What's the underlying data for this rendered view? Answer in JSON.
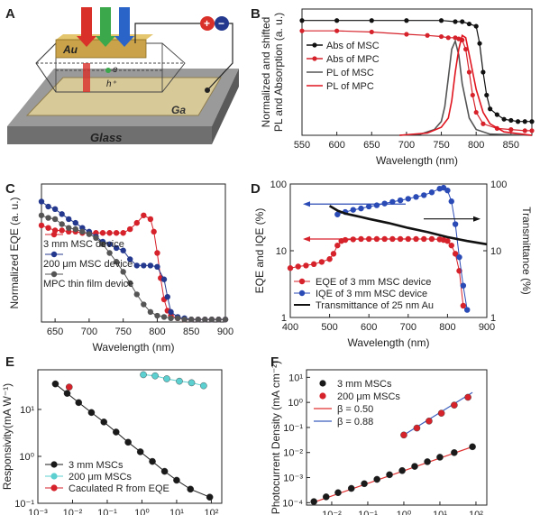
{
  "panel_labels": {
    "A": "A",
    "B": "B",
    "C": "C",
    "D": "D",
    "E": "E",
    "F": "F"
  },
  "schematic": {
    "layers": {
      "top": "Au",
      "bottom": "Ga",
      "substrate": "Glass"
    },
    "symbols": {
      "plus": "+",
      "minus": "−",
      "electron": "e",
      "hole": "h⁺"
    },
    "colors": {
      "red": "#d9302a",
      "green": "#3aa84b",
      "blue": "#2a64c8",
      "gold": "#c9a24a",
      "ga": "#c8b98a",
      "glass": "#8f8f8f"
    }
  },
  "chart_data": [
    {
      "id": "B",
      "type": "line",
      "xlabel": "Wavelength (nm)",
      "ylabel": "Normalized and shifted PL and Absorption (a. u.)",
      "xlim": [
        550,
        880
      ],
      "ylim": [
        0,
        1.1
      ],
      "xticks": [
        550,
        600,
        650,
        700,
        750,
        800,
        850
      ],
      "grid": false,
      "legend": "center-left",
      "series": [
        {
          "name": "Abs of MSC",
          "style": "dot-line",
          "color": "#111111",
          "x": [
            550,
            600,
            650,
            700,
            750,
            770,
            780,
            790,
            800,
            805,
            810,
            815,
            820,
            830,
            840,
            850,
            860,
            870,
            880
          ],
          "y": [
            1.0,
            1.0,
            1.0,
            1.0,
            1.0,
            0.99,
            0.99,
            0.97,
            0.95,
            0.8,
            0.55,
            0.35,
            0.23,
            0.18,
            0.14,
            0.13,
            0.12,
            0.12,
            0.12
          ]
        },
        {
          "name": "Abs of MPC",
          "style": "dot-line",
          "color": "#d6222b",
          "x": [
            550,
            600,
            650,
            700,
            730,
            750,
            760,
            770,
            775,
            780,
            785,
            790,
            795,
            800,
            810,
            830,
            850,
            870,
            880
          ],
          "y": [
            0.91,
            0.91,
            0.9,
            0.88,
            0.87,
            0.86,
            0.85,
            0.85,
            0.84,
            0.83,
            0.75,
            0.55,
            0.35,
            0.2,
            0.1,
            0.06,
            0.05,
            0.04,
            0.04
          ]
        },
        {
          "name": "PL of MSC",
          "style": "line",
          "color": "#555555",
          "x": [
            690,
            720,
            740,
            750,
            755,
            760,
            765,
            770,
            775,
            780,
            790,
            800,
            820,
            880
          ],
          "y": [
            0.0,
            0.01,
            0.05,
            0.12,
            0.25,
            0.5,
            0.75,
            0.82,
            0.7,
            0.45,
            0.15,
            0.05,
            0.01,
            0.0
          ]
        },
        {
          "name": "PL of MPC",
          "style": "line",
          "color": "#e0141e",
          "x": [
            690,
            730,
            750,
            760,
            765,
            770,
            775,
            780,
            785,
            790,
            800,
            810,
            820,
            840,
            880
          ],
          "y": [
            0.0,
            0.02,
            0.07,
            0.15,
            0.3,
            0.55,
            0.75,
            0.87,
            0.85,
            0.7,
            0.4,
            0.2,
            0.1,
            0.03,
            0.0
          ]
        }
      ]
    },
    {
      "id": "C",
      "type": "line",
      "xlabel": "Wavelength (nm)",
      "ylabel": "Normalized EQE (a. u.)",
      "xlim": [
        630,
        900
      ],
      "ylim": [
        0,
        1.1
      ],
      "xticks": [
        650,
        700,
        750,
        800,
        850,
        900
      ],
      "grid": false,
      "legend": "left",
      "series": [
        {
          "name": "3 mm MSC device",
          "color": "#d6222b",
          "x": [
            630,
            640,
            650,
            660,
            670,
            680,
            690,
            700,
            710,
            720,
            730,
            740,
            750,
            760,
            770,
            780,
            790,
            795,
            800,
            805,
            810,
            815,
            820,
            830,
            840,
            850,
            860,
            870,
            880,
            890,
            900
          ],
          "y": [
            0.77,
            0.75,
            0.73,
            0.73,
            0.72,
            0.72,
            0.71,
            0.71,
            0.71,
            0.71,
            0.71,
            0.71,
            0.71,
            0.74,
            0.79,
            0.85,
            0.82,
            0.72,
            0.55,
            0.35,
            0.18,
            0.09,
            0.05,
            0.03,
            0.02,
            0.02,
            0.02,
            0.02,
            0.02,
            0.02,
            0.02
          ]
        },
        {
          "name": "200 μm MSC device",
          "color": "#24398e",
          "x": [
            630,
            640,
            650,
            660,
            670,
            680,
            690,
            700,
            710,
            720,
            730,
            740,
            750,
            760,
            770,
            780,
            790,
            800,
            810,
            815,
            820,
            830,
            840,
            850,
            860,
            870,
            880,
            890,
            900
          ],
          "y": [
            0.96,
            0.92,
            0.9,
            0.86,
            0.82,
            0.79,
            0.75,
            0.72,
            0.68,
            0.64,
            0.62,
            0.59,
            0.57,
            0.5,
            0.45,
            0.45,
            0.45,
            0.44,
            0.34,
            0.2,
            0.08,
            0.04,
            0.03,
            0.02,
            0.02,
            0.02,
            0.02,
            0.02,
            0.02
          ]
        },
        {
          "name": "MPC thin film device",
          "color": "#555555",
          "x": [
            630,
            640,
            650,
            660,
            670,
            680,
            690,
            700,
            710,
            720,
            730,
            740,
            750,
            760,
            770,
            780,
            790,
            800,
            810,
            820,
            830,
            840,
            850,
            860,
            870,
            880,
            890,
            900
          ],
          "y": [
            0.85,
            0.83,
            0.82,
            0.78,
            0.75,
            0.74,
            0.72,
            0.7,
            0.67,
            0.62,
            0.55,
            0.48,
            0.4,
            0.31,
            0.22,
            0.14,
            0.08,
            0.05,
            0.04,
            0.03,
            0.03,
            0.02,
            0.02,
            0.02,
            0.02,
            0.02,
            0.02,
            0.02
          ]
        }
      ]
    },
    {
      "id": "D",
      "type": "line",
      "xlabel": "Wavelength (nm)",
      "ylabel": "EQE and IQE (%)",
      "y2label": "Transmittance (%)",
      "xlim": [
        400,
        900
      ],
      "ylim": [
        1,
        100
      ],
      "y2lim": [
        1,
        100
      ],
      "yscale": "log",
      "y2scale": "log",
      "xticks": [
        400,
        500,
        600,
        700,
        800,
        900
      ],
      "yticks": [
        1,
        10,
        100
      ],
      "grid": false,
      "legend": "bottom-left",
      "series": [
        {
          "name": "EQE of 3 mm MSC device",
          "color": "#d6222b",
          "axis": "left",
          "x": [
            400,
            420,
            440,
            460,
            480,
            500,
            510,
            520,
            530,
            540,
            560,
            580,
            600,
            620,
            640,
            660,
            680,
            700,
            720,
            740,
            760,
            780,
            790,
            800,
            810,
            820,
            830,
            840
          ],
          "y": [
            5.5,
            5.8,
            6.0,
            6.3,
            6.8,
            7.5,
            9,
            12,
            14,
            14.5,
            14.8,
            15,
            15,
            15,
            15,
            15,
            15,
            15,
            15,
            15,
            15,
            14.8,
            14.5,
            14,
            12,
            9,
            5,
            1.5
          ]
        },
        {
          "name": "IQE of 3 mm MSC device",
          "color": "#2a4ab5",
          "axis": "left",
          "x": [
            520,
            540,
            560,
            580,
            600,
            620,
            640,
            660,
            680,
            700,
            720,
            740,
            760,
            780,
            790,
            800,
            810,
            820,
            830,
            840,
            850
          ],
          "y": [
            35,
            38,
            41,
            43,
            46,
            48,
            51,
            54,
            57,
            60,
            64,
            68,
            75,
            85,
            88,
            80,
            55,
            25,
            8,
            3,
            1.3
          ]
        },
        {
          "name": "Transmittance of 25 nm Au",
          "color": "#111111",
          "axis": "right",
          "x": [
            500,
            520,
            540,
            560,
            580,
            600,
            650,
            700,
            750,
            800,
            850,
            900
          ],
          "y": [
            47,
            40,
            36,
            34,
            32,
            30,
            26,
            22,
            19,
            16,
            14,
            12.5
          ]
        }
      ]
    },
    {
      "id": "E",
      "type": "scatter",
      "xlabel": "",
      "ylabel": "Responsivity(mA W⁻¹)",
      "xscale": "log",
      "yscale": "log",
      "xlim": [
        0.001,
        200
      ],
      "ylim": [
        0.1,
        70
      ],
      "xticks": [
        "10⁻³",
        "10⁻²",
        "10⁻¹",
        "10⁰",
        "10¹",
        "10²"
      ],
      "yticks": [
        "10⁻¹",
        "10⁰",
        "10¹"
      ],
      "grid": false,
      "legend": "bottom-left",
      "series": [
        {
          "name": "3 mm MSCs",
          "color": "#1a1a1a",
          "x": [
            0.0032,
            0.007,
            0.015,
            0.035,
            0.08,
            0.18,
            0.4,
            0.9,
            2,
            4.5,
            10,
            25,
            90
          ],
          "y": [
            35,
            22,
            14,
            8.6,
            5.4,
            3.3,
            2.0,
            1.25,
            0.78,
            0.48,
            0.31,
            0.2,
            0.135
          ]
        },
        {
          "name": "200 μm MSCs",
          "color": "#5ccfd0",
          "x": [
            1.1,
            2.4,
            5.2,
            12,
            27,
            60
          ],
          "y": [
            55,
            52,
            45,
            40,
            37,
            32
          ]
        },
        {
          "name": "Caculated R from EQE",
          "color": "#d6222b",
          "x": [
            0.008
          ],
          "y": [
            30
          ]
        }
      ]
    },
    {
      "id": "F",
      "type": "scatter",
      "xlabel": "",
      "ylabel": "Photocurrent Density (mA cm⁻²)",
      "xscale": "log",
      "yscale": "log",
      "xlim": [
        0.002,
        200
      ],
      "ylim": [
        8e-05,
        20
      ],
      "xticks": [
        "10⁻²",
        "10⁻¹",
        "10⁰",
        "10¹",
        "10²"
      ],
      "yticks": [
        "10⁻⁴",
        "10⁻³",
        "10⁻²",
        "10⁻¹",
        "10⁰",
        "10¹"
      ],
      "grid": false,
      "legend": "top-left",
      "series": [
        {
          "name": "3 mm MSCs",
          "color": "#1a1a1a",
          "x": [
            0.0032,
            0.007,
            0.015,
            0.035,
            0.08,
            0.18,
            0.4,
            0.9,
            2,
            4.5,
            10,
            25,
            80
          ],
          "y": [
            0.00011,
            0.00017,
            0.00025,
            0.00037,
            0.00057,
            0.00085,
            0.0013,
            0.0019,
            0.0028,
            0.0043,
            0.0065,
            0.0099,
            0.017
          ]
        },
        {
          "name": "200 μm MSCs",
          "color": "#d6222b",
          "x": [
            1.0,
            2.3,
            5,
            11,
            25,
            60
          ],
          "y": [
            0.05,
            0.095,
            0.18,
            0.37,
            0.78,
            1.6
          ]
        }
      ],
      "fits": [
        {
          "name": "β = 0.50",
          "color": "#e03030",
          "x": [
            0.003,
            80
          ],
          "y": [
            0.0001,
            0.017
          ]
        },
        {
          "name": "β = 0.88",
          "color": "#3b5dbd",
          "x": [
            1.0,
            80
          ],
          "y": [
            0.05,
            2.5
          ]
        }
      ]
    }
  ]
}
